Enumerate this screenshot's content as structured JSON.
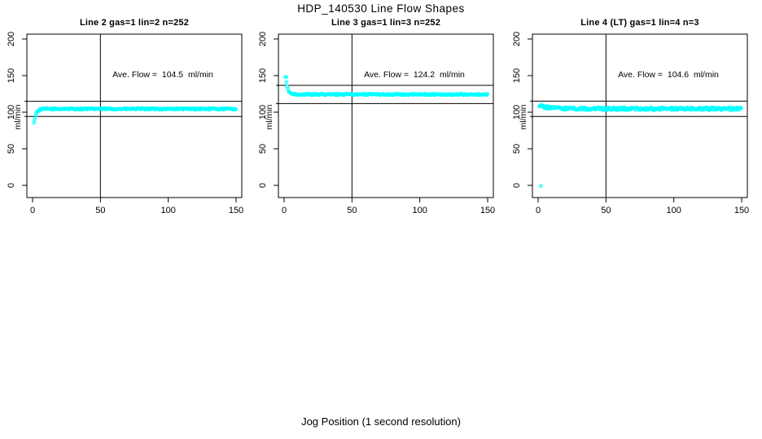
{
  "title": "HDP_140530  Line Flow Shapes",
  "xlabel": "Jog Position (1 second resolution)",
  "colors": {
    "points": "#00ffff",
    "axis": "#000000",
    "background": "#ffffff"
  },
  "chart_data": [
    {
      "type": "scatter",
      "title": "Line 2 gas=1 lin=2 n=252",
      "annotation": "Ave. Flow =  104.5  ml/min",
      "ylabel": "ml/min",
      "ave_flow": 104.5,
      "xlim": [
        0,
        150
      ],
      "ylim": [
        0,
        200
      ],
      "xticks": [
        0,
        50,
        100,
        150
      ],
      "yticks": [
        0,
        50,
        100,
        150,
        200
      ],
      "vline": 50,
      "ref_lines": [
        114.9,
        94.1
      ],
      "series": {
        "x_start": 1,
        "x_end": 150,
        "step": 0.6,
        "start": 85,
        "settle": 104.5,
        "tau": 1.5,
        "noise": 1.0
      },
      "outliers": []
    },
    {
      "type": "scatter",
      "title": "Line 3 gas=1 lin=3 n=252",
      "annotation": "Ave. Flow =  124.2  ml/min",
      "ylabel": "ml/min",
      "ave_flow": 124.2,
      "xlim": [
        0,
        150
      ],
      "ylim": [
        0,
        200
      ],
      "xticks": [
        0,
        50,
        100,
        150
      ],
      "yticks": [
        0,
        50,
        100,
        150,
        200
      ],
      "vline": 50,
      "ref_lines": [
        136.6,
        111.8
      ],
      "series": {
        "x_start": 1,
        "x_end": 150,
        "step": 0.6,
        "start": 148,
        "settle": 124.2,
        "tau": 1.5,
        "noise": 0.9
      },
      "outliers": [
        [
          1.5,
          148
        ]
      ]
    },
    {
      "type": "scatter",
      "title": "Line 4 (LT) gas=1 lin=4 n=3",
      "annotation": "Ave. Flow =  104.6  ml/min",
      "ylabel": "ml/min",
      "ave_flow": 104.6,
      "xlim": [
        0,
        150
      ],
      "ylim": [
        0,
        200
      ],
      "xticks": [
        0,
        50,
        100,
        150
      ],
      "yticks": [
        0,
        50,
        100,
        150,
        200
      ],
      "vline": 50,
      "ref_lines": [
        115.1,
        94.1
      ],
      "series": {
        "x_start": 1,
        "x_end": 150,
        "step": 0.55,
        "start": 109,
        "settle": 104.6,
        "tau": 8,
        "noise": 1.8
      },
      "outliers": [
        [
          2,
          -1
        ]
      ]
    }
  ]
}
